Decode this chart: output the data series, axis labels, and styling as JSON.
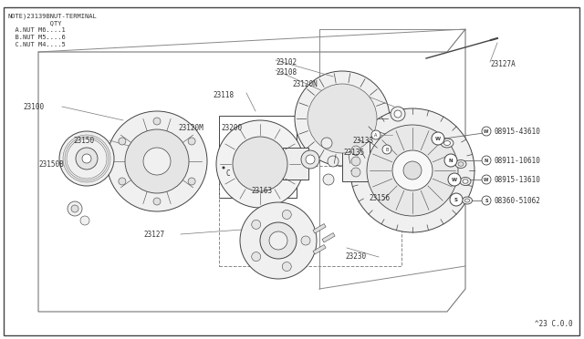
{
  "bg_color": "#ffffff",
  "line_color": "#444444",
  "text_color": "#333333",
  "title_bottom": "^23 C.0.0",
  "note_lines": [
    "NOTE)23139BNUT-TERMINAL",
    "           QTY",
    "  A.NUT M6....1",
    "  B.NUT M5....6",
    "  C.NUT M4....5"
  ],
  "fig_width": 6.4,
  "fig_height": 3.72,
  "dpi": 100
}
